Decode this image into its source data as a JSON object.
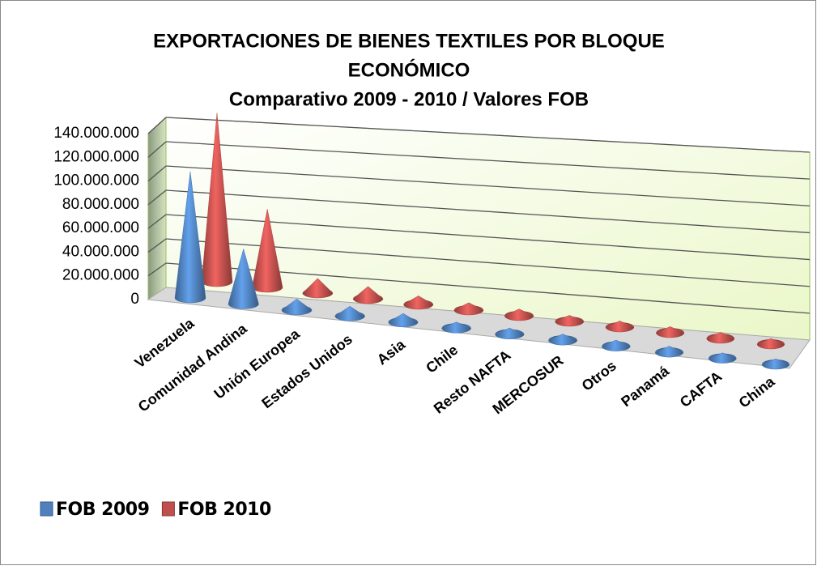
{
  "chart_data": {
    "type": "cone3d",
    "title": [
      "EXPORTACIONES DE BIENES TEXTILES POR BLOQUE",
      "ECONÓMICO"
    ],
    "subtitle": "Comparativo 2009 - 2010 / Valores FOB",
    "categories": [
      "Venezuela",
      "Comunidad Andina",
      "Unión Europea",
      "Estados Unidos",
      "Asia",
      "Chile",
      "Resto NAFTA",
      "MERCOSUR",
      "Otros",
      "Panamá",
      "CAFTA",
      "China"
    ],
    "series": [
      {
        "name": "FOB 2009",
        "color": "#4f81bd",
        "values": [
          100000000,
          41000000,
          5000000,
          4000000,
          3000000,
          1000000,
          1000000,
          1000000,
          1000000,
          1000000,
          500000,
          500000
        ]
      },
      {
        "name": "FOB 2010",
        "color": "#c0504d",
        "values": [
          135000000,
          60000000,
          8000000,
          6000000,
          3000000,
          2000000,
          1500000,
          1000000,
          1000000,
          1000000,
          1000000,
          500000
        ]
      }
    ],
    "ylim": [
      0,
      140000000
    ],
    "yticks": [
      0,
      {
        "value": 20000000,
        "label": "20.000.000"
      },
      {
        "value": 40000000,
        "label": "40.000.000"
      },
      {
        "value": 60000000,
        "label": "60.000.000"
      },
      {
        "value": 80000000,
        "label": "80.000.000"
      },
      {
        "value": 100000000,
        "label": "100.000.000"
      },
      {
        "value": 120000000,
        "label": "120.000.000"
      },
      {
        "value": 140000000,
        "label": "140.000.000"
      }
    ],
    "grid": true,
    "legend": "bottom-left"
  }
}
